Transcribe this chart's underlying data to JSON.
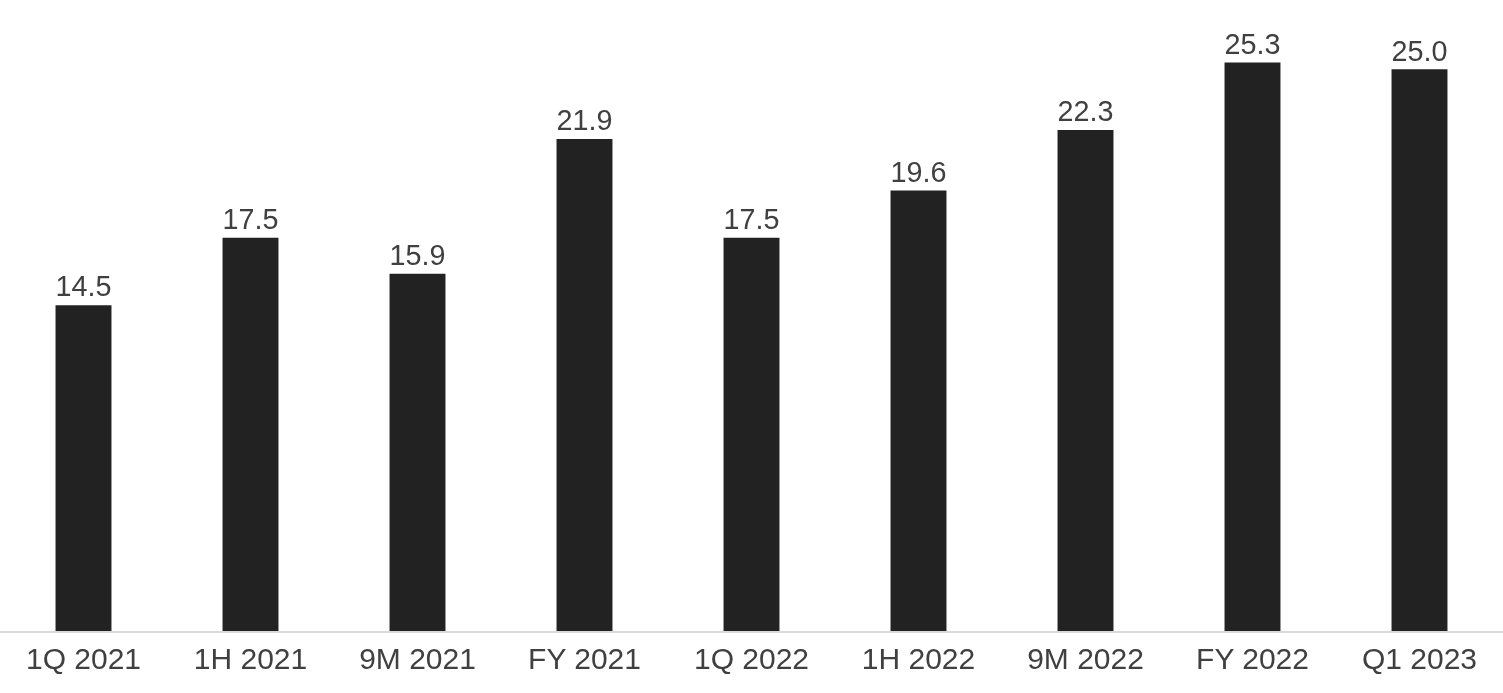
{
  "chart_data": {
    "type": "bar",
    "categories": [
      "1Q 2021",
      "1H 2021",
      "9M 2021",
      "FY 2021",
      "1Q 2022",
      "1H 2022",
      "9M 2022",
      "FY 2022",
      "Q1 2023"
    ],
    "values": [
      14.5,
      17.5,
      15.9,
      21.9,
      17.5,
      19.6,
      22.3,
      25.3,
      25.0
    ],
    "value_labels": [
      "14.5",
      "17.5",
      "15.9",
      "21.9",
      "17.5",
      "19.6",
      "22.3",
      "25.3",
      "25.0"
    ],
    "color": "#222222",
    "data_labels": true,
    "legend": false
  }
}
